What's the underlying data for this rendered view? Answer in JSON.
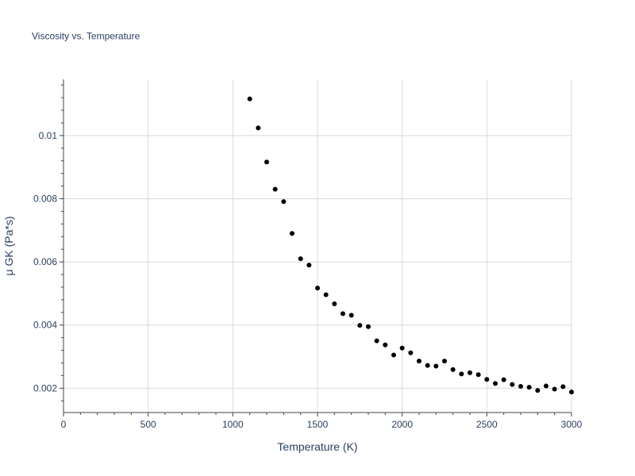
{
  "chart_data": {
    "type": "scatter",
    "title": "Viscosity vs. Temperature",
    "xlabel": "Temperature (K)",
    "ylabel": "μ GK (Pa*s)",
    "xlim": [
      0,
      3000
    ],
    "ylim": [
      0.00123,
      0.01178
    ],
    "x_ticks": [
      0,
      500,
      1000,
      1500,
      2000,
      2500,
      3000
    ],
    "x_tick_labels": [
      "0",
      "500",
      "1000",
      "1500",
      "2000",
      "2500",
      "3000"
    ],
    "y_ticks": [
      0.002,
      0.004,
      0.006,
      0.008,
      0.01
    ],
    "y_tick_labels": [
      "0.002",
      "0.004",
      "0.006",
      "0.008",
      "0.01"
    ],
    "grid": true,
    "marker_color": "#000000",
    "series": [
      {
        "x": [
          1100,
          1150,
          1200,
          1250,
          1300,
          1350,
          1400,
          1450,
          1500,
          1550,
          1600,
          1650,
          1700,
          1750,
          1800,
          1850,
          1900,
          1950,
          2000,
          2050,
          2100,
          2150,
          2200,
          2250,
          2300,
          2350,
          2400,
          2450,
          2500,
          2550,
          2600,
          2650,
          2700,
          2750,
          2800,
          2850,
          2900,
          2950,
          3000
        ],
        "y": [
          0.01116,
          0.01024,
          0.00916,
          0.0083,
          0.00791,
          0.0069,
          0.0061,
          0.0059,
          0.00517,
          0.00496,
          0.00467,
          0.00436,
          0.00431,
          0.00399,
          0.00395,
          0.0035,
          0.00337,
          0.00305,
          0.00327,
          0.00312,
          0.00286,
          0.00272,
          0.0027,
          0.00286,
          0.00259,
          0.00245,
          0.00249,
          0.00243,
          0.00228,
          0.00215,
          0.00227,
          0.00212,
          0.00206,
          0.00203,
          0.00193,
          0.00207,
          0.00197,
          0.00205,
          0.00188
        ]
      }
    ]
  }
}
